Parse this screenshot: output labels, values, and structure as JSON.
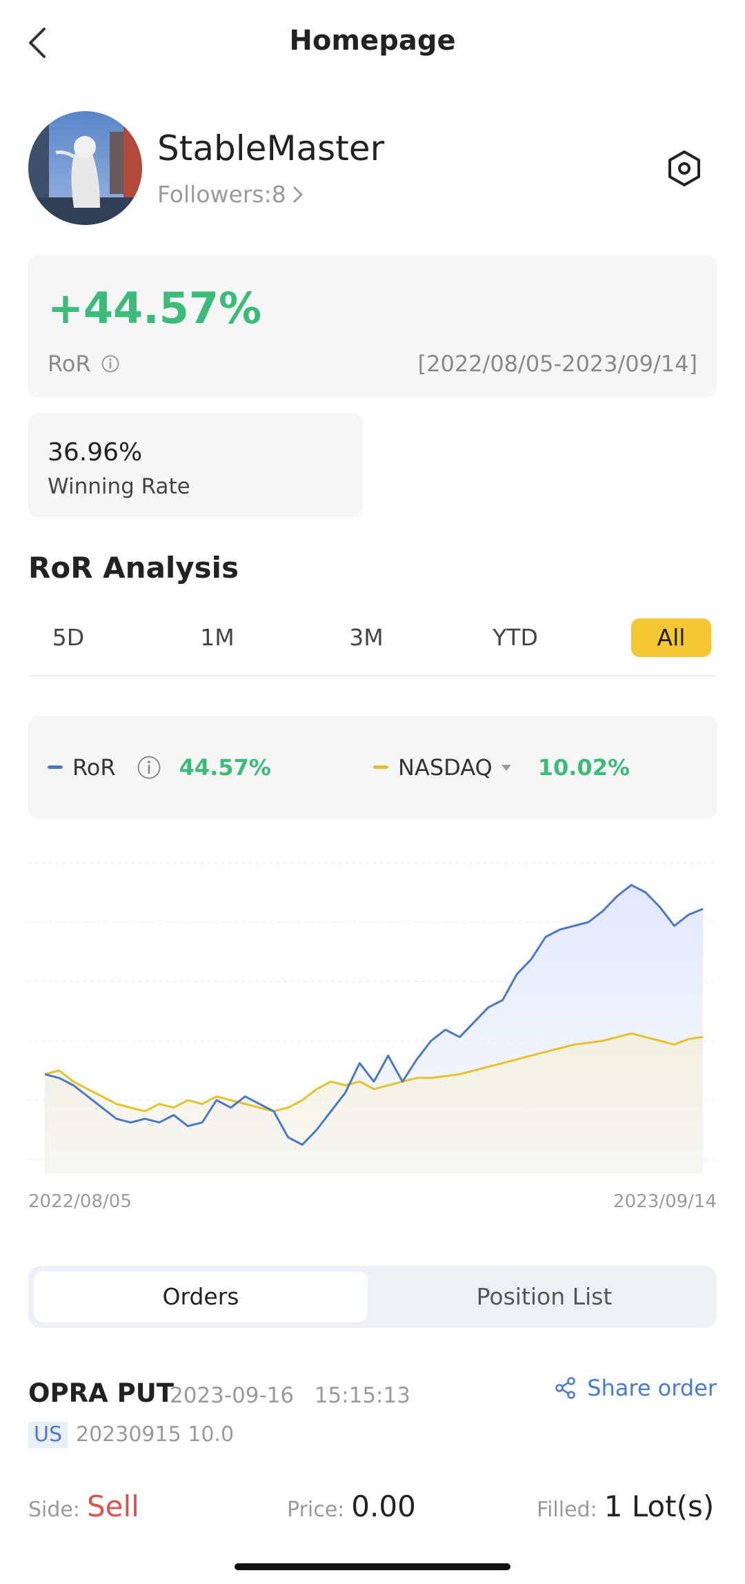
{
  "header": {
    "title": "Homepage"
  },
  "profile": {
    "username": "StableMaster",
    "followers_text": "Followers:8"
  },
  "ror_card": {
    "value": "+44.57%",
    "label": "RoR",
    "date_range": "[2022/08/05-2023/09/14]"
  },
  "winning": {
    "value": "36.96%",
    "label": "Winning Rate"
  },
  "analysis": {
    "title": "RoR Analysis",
    "periods": [
      "5D",
      "1M",
      "3M",
      "YTD",
      "All"
    ],
    "active_period": "All"
  },
  "legend": {
    "ror_label": "RoR",
    "ror_value": "44.57%",
    "benchmark_label": "NASDAQ",
    "benchmark_value": "10.02%"
  },
  "colors": {
    "ror": "#4a78c8",
    "nasdaq": "#e6c229",
    "positive": "#3dbb7a",
    "accent": "#f4c632",
    "sell": "#d9534f"
  },
  "chart_data": {
    "type": "line",
    "x_start": "2022/08/05",
    "x_end": "2023/09/14",
    "grid": true,
    "series": [
      {
        "name": "RoR",
        "values": [
          0,
          -1,
          -3,
          -6,
          -9,
          -12,
          -13,
          -12,
          -13,
          -11,
          -14,
          -13,
          -7,
          -9,
          -6,
          -8,
          -10,
          -17,
          -19,
          -15,
          -10,
          -5,
          3,
          -2,
          5,
          -2,
          4,
          9,
          12,
          10,
          14,
          18,
          20,
          27,
          31,
          37,
          39,
          40,
          41,
          44,
          48,
          51,
          49,
          45,
          40,
          43,
          44.57
        ]
      },
      {
        "name": "NASDAQ",
        "values": [
          0,
          1,
          -2,
          -4,
          -6,
          -8,
          -9,
          -10,
          -8,
          -9,
          -7,
          -8,
          -6,
          -7,
          -8,
          -9,
          -10,
          -9,
          -7,
          -4,
          -2,
          -3,
          -2,
          -4,
          -3,
          -2,
          -1,
          -1,
          -0.5,
          0,
          1,
          2,
          3,
          4,
          5,
          6,
          7,
          8,
          8.5,
          9,
          10,
          11,
          10,
          9,
          8,
          9.5,
          10.02
        ]
      }
    ]
  },
  "tabs": {
    "orders": "Orders",
    "positions": "Position List"
  },
  "order": {
    "name": "OPRA PUT",
    "datetime": "2023-09-16   15:15:13",
    "share_label": "Share order",
    "market": "US",
    "contract": "20230915 10.0",
    "side_label": "Side:",
    "side_value": "Sell",
    "price_label": "Price:",
    "price_value": "0.00",
    "filled_label": "Filled:",
    "filled_value": "1 Lot(s)"
  }
}
